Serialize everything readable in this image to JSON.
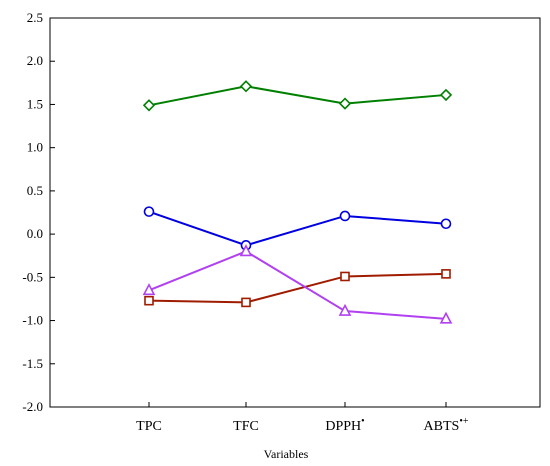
{
  "chart_data": {
    "type": "line",
    "title": "",
    "xlabel": "Variables",
    "ylabel": "",
    "ylim": [
      -2.0,
      2.5
    ],
    "yticks": [
      "2.5",
      "2.0",
      "1.5",
      "1.0",
      "0.5",
      "0.0",
      "-0.5",
      "-1.0",
      "-1.5",
      "-2.0"
    ],
    "ytick_values": [
      2.5,
      2.0,
      1.5,
      1.0,
      0.5,
      0.0,
      -0.5,
      -1.0,
      -1.5,
      -2.0
    ],
    "categories": [
      {
        "label": "TPC",
        "sup": ""
      },
      {
        "label": "TFC",
        "sup": ""
      },
      {
        "label": "DPPH",
        "sup": "•"
      },
      {
        "label": "ABTS",
        "sup": "•+"
      }
    ],
    "grid": false,
    "legend": "none",
    "series": [
      {
        "marker": "diamond",
        "color": "#008000",
        "values": [
          1.49,
          1.71,
          1.51,
          1.61
        ]
      },
      {
        "marker": "circle",
        "color": "#0000e0",
        "values": [
          0.26,
          -0.13,
          0.21,
          0.12
        ]
      },
      {
        "marker": "square",
        "color": "#a01c00",
        "values": [
          -0.77,
          -0.79,
          -0.49,
          -0.46
        ]
      },
      {
        "marker": "triangle",
        "color": "#b040f0",
        "values": [
          -0.65,
          -0.2,
          -0.89,
          -0.98
        ]
      }
    ]
  }
}
